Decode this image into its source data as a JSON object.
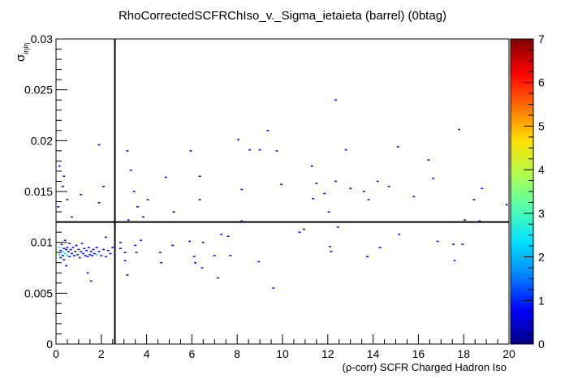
{
  "chart_data": {
    "type": "heatmap",
    "title": "RhoCorrectedSCFRChIso_v._Sigma_ietaieta (barrel) (0btag)",
    "xlabel": "(ρ-corr) SCFR Charged Hadron Iso",
    "ylabel": "σ",
    "ylabel_subscript": "iηiη",
    "xlim": [
      0,
      20
    ],
    "ylim": [
      0,
      0.03
    ],
    "x_ticks": [
      "0",
      "2",
      "4",
      "6",
      "8",
      "10",
      "12",
      "14",
      "16",
      "18",
      "20"
    ],
    "y_ticks": [
      "0",
      "0.005",
      "0.01",
      "0.015",
      "0.02",
      "0.025",
      "0.03"
    ],
    "colorbar": {
      "min": 0,
      "max": 7,
      "ticks": [
        "0",
        "1",
        "2",
        "3",
        "4",
        "5",
        "6",
        "7"
      ],
      "palette": [
        "#00007f",
        "#0000ff",
        "#0080ff",
        "#00e0ff",
        "#50ffb0",
        "#b0ff50",
        "#ffe000",
        "#ff7000",
        "#ff0000",
        "#7f0000"
      ]
    },
    "cut_lines": {
      "x": 2.6,
      "y": 0.012
    },
    "points": [
      [
        0.1,
        0.0135,
        1
      ],
      [
        0.15,
        0.0095,
        2
      ],
      [
        0.15,
        0.0088,
        2
      ],
      [
        0.2,
        0.0092,
        1
      ],
      [
        0.2,
        0.0085,
        1
      ],
      [
        0.25,
        0.0098,
        1
      ],
      [
        0.3,
        0.0091,
        2
      ],
      [
        0.3,
        0.0087,
        1
      ],
      [
        0.35,
        0.0094,
        1
      ],
      [
        0.35,
        0.0083,
        1
      ],
      [
        0.4,
        0.0089,
        2
      ],
      [
        0.4,
        0.0102,
        1
      ],
      [
        0.45,
        0.0093,
        1
      ],
      [
        0.45,
        0.0077,
        1
      ],
      [
        0.5,
        0.0087,
        2
      ],
      [
        0.5,
        0.0095,
        1
      ],
      [
        0.55,
        0.0091,
        1
      ],
      [
        0.6,
        0.0086,
        1
      ],
      [
        0.6,
        0.0099,
        1
      ],
      [
        0.65,
        0.0093,
        1
      ],
      [
        0.7,
        0.0089,
        1
      ],
      [
        0.75,
        0.0095,
        1
      ],
      [
        0.8,
        0.0087,
        1
      ],
      [
        0.85,
        0.0091,
        1
      ],
      [
        0.9,
        0.0097,
        1
      ],
      [
        0.95,
        0.0088,
        1
      ],
      [
        1.0,
        0.0093,
        1
      ],
      [
        1.05,
        0.0085,
        1
      ],
      [
        1.1,
        0.0091,
        1
      ],
      [
        1.15,
        0.0099,
        1
      ],
      [
        1.2,
        0.0089,
        1
      ],
      [
        1.25,
        0.0094,
        1
      ],
      [
        1.3,
        0.0087,
        1
      ],
      [
        1.35,
        0.0092,
        1
      ],
      [
        1.4,
        0.0086,
        1
      ],
      [
        1.45,
        0.0095,
        1
      ],
      [
        1.5,
        0.0088,
        1
      ],
      [
        1.55,
        0.0091,
        1
      ],
      [
        1.6,
        0.0087,
        1
      ],
      [
        1.65,
        0.0093,
        1
      ],
      [
        1.7,
        0.0089,
        1
      ],
      [
        1.8,
        0.0088,
        2
      ],
      [
        1.8,
        0.0095,
        1
      ],
      [
        1.9,
        0.0091,
        1
      ],
      [
        2.0,
        0.0087,
        1
      ],
      [
        2.1,
        0.0093,
        1
      ],
      [
        2.2,
        0.0086,
        1
      ],
      [
        2.3,
        0.0092,
        1
      ],
      [
        2.4,
        0.0089,
        1
      ],
      [
        2.5,
        0.0095,
        1
      ],
      [
        0.15,
        0.0175,
        1
      ],
      [
        0.3,
        0.0155,
        1
      ],
      [
        0.35,
        0.0165,
        1
      ],
      [
        0.7,
        0.0125,
        1
      ],
      [
        1.1,
        0.0147,
        1
      ],
      [
        1.4,
        0.007,
        1
      ],
      [
        1.55,
        0.0062,
        1
      ],
      [
        1.9,
        0.0196,
        1
      ],
      [
        1.9,
        0.0139,
        1
      ],
      [
        2.1,
        0.0155,
        1
      ],
      [
        2.2,
        0.0105,
        1
      ],
      [
        2.85,
        0.01,
        1
      ],
      [
        2.85,
        0.0094,
        1
      ],
      [
        3.05,
        0.009,
        1
      ],
      [
        3.15,
        0.019,
        1
      ],
      [
        3.2,
        0.0122,
        1
      ],
      [
        3.3,
        0.0171,
        1
      ],
      [
        3.45,
        0.015,
        1
      ],
      [
        3.5,
        0.0097,
        1
      ],
      [
        3.55,
        0.009,
        1
      ],
      [
        3.6,
        0.0135,
        1
      ],
      [
        3.75,
        0.0102,
        1
      ],
      [
        3.85,
        0.0125,
        1
      ],
      [
        4.05,
        0.0142,
        1
      ],
      [
        3.15,
        0.0068,
        1
      ],
      [
        3.05,
        0.0082,
        1
      ],
      [
        4.6,
        0.009,
        1
      ],
      [
        4.65,
        0.008,
        1
      ],
      [
        4.85,
        0.0164,
        1
      ],
      [
        5.15,
        0.0097,
        1
      ],
      [
        5.2,
        0.013,
        1
      ],
      [
        5.9,
        0.0101,
        1
      ],
      [
        5.95,
        0.019,
        1
      ],
      [
        6.1,
        0.0086,
        1
      ],
      [
        6.15,
        0.008,
        1
      ],
      [
        6.35,
        0.0165,
        1
      ],
      [
        6.35,
        0.0142,
        1
      ],
      [
        6.45,
        0.0075,
        1
      ],
      [
        6.5,
        0.01,
        1
      ],
      [
        7.0,
        0.0087,
        1
      ],
      [
        7.15,
        0.0065,
        1
      ],
      [
        7.3,
        0.0108,
        1
      ],
      [
        7.6,
        0.0106,
        1
      ],
      [
        7.7,
        0.0087,
        1
      ],
      [
        8.05,
        0.0201,
        1
      ],
      [
        8.2,
        0.0152,
        1
      ],
      [
        8.2,
        0.0121,
        1
      ],
      [
        8.55,
        0.0191,
        1
      ],
      [
        8.95,
        0.0081,
        1
      ],
      [
        9.0,
        0.0191,
        1
      ],
      [
        9.35,
        0.021,
        1
      ],
      [
        9.6,
        0.0055,
        1
      ],
      [
        9.75,
        0.019,
        1
      ],
      [
        9.95,
        0.0157,
        1
      ],
      [
        10.75,
        0.011,
        1
      ],
      [
        10.95,
        0.0113,
        1
      ],
      [
        11.3,
        0.0175,
        1
      ],
      [
        11.35,
        0.0143,
        1
      ],
      [
        11.5,
        0.0158,
        1
      ],
      [
        11.85,
        0.0148,
        1
      ],
      [
        12.05,
        0.013,
        1
      ],
      [
        12.1,
        0.0096,
        1
      ],
      [
        12.15,
        0.0091,
        1
      ],
      [
        12.35,
        0.024,
        1
      ],
      [
        12.35,
        0.016,
        1
      ],
      [
        12.45,
        0.0115,
        1
      ],
      [
        12.8,
        0.0191,
        1
      ],
      [
        13.0,
        0.0153,
        1
      ],
      [
        13.6,
        0.015,
        1
      ],
      [
        13.75,
        0.0086,
        1
      ],
      [
        13.8,
        0.0142,
        1
      ],
      [
        14.2,
        0.016,
        1
      ],
      [
        14.3,
        0.0095,
        1
      ],
      [
        14.7,
        0.0155,
        1
      ],
      [
        15.1,
        0.0194,
        1
      ],
      [
        15.15,
        0.0108,
        1
      ],
      [
        15.8,
        0.0145,
        1
      ],
      [
        16.45,
        0.0181,
        1
      ],
      [
        16.65,
        0.0163,
        1
      ],
      [
        16.85,
        0.0101,
        1
      ],
      [
        17.55,
        0.0098,
        1
      ],
      [
        17.6,
        0.0082,
        1
      ],
      [
        17.8,
        0.0211,
        1
      ],
      [
        17.95,
        0.0098,
        1
      ],
      [
        18.05,
        0.0122,
        1
      ],
      [
        18.45,
        0.0142,
        1
      ],
      [
        18.7,
        0.0121,
        1
      ],
      [
        18.8,
        0.0153,
        1
      ],
      [
        19.9,
        0.0137,
        1
      ],
      [
        0.5,
        0.0142,
        1
      ]
    ]
  }
}
